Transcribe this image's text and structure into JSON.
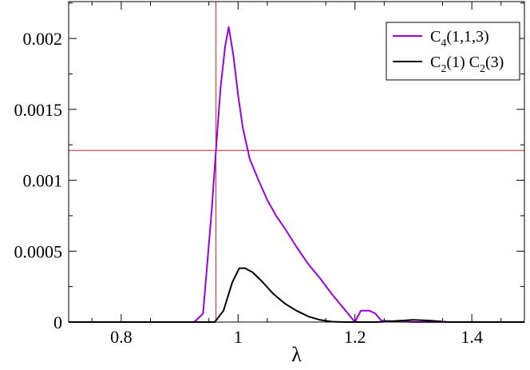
{
  "chart_data": {
    "type": "line",
    "xlabel": "λ",
    "ylabel": "",
    "xlim": [
      0.71,
      1.49
    ],
    "ylim": [
      0,
      0.00226
    ],
    "x_ticks": [
      {
        "value": 0.8,
        "label": "0.8"
      },
      {
        "value": 1.0,
        "label": "1"
      },
      {
        "value": 1.2,
        "label": "1.2"
      },
      {
        "value": 1.4,
        "label": "1.4"
      }
    ],
    "y_ticks": [
      {
        "value": 0,
        "label": "0"
      },
      {
        "value": 0.0005,
        "label": "0.0005"
      },
      {
        "value": 0.001,
        "label": "0.001"
      },
      {
        "value": 0.0015,
        "label": "0.0015"
      },
      {
        "value": 0.002,
        "label": "0.002"
      }
    ],
    "x_minor_step": 0.1,
    "y_minor_step": 0.00025,
    "legend_position": "top-right",
    "reference_lines": {
      "color": "#e02020",
      "vertical_x": 0.962,
      "horizontal_y": 0.00121
    },
    "series": [
      {
        "name": "C4(1,1,3)",
        "legend": {
          "main": "C",
          "sub": "4",
          "rest": "(1,1,3)"
        },
        "color": "#9b00e0",
        "points": [
          [
            0.71,
            0
          ],
          [
            0.925,
            0
          ],
          [
            0.94,
            6e-05
          ],
          [
            0.947,
            0.0004
          ],
          [
            0.955,
            0.0008
          ],
          [
            0.962,
            0.00121
          ],
          [
            0.97,
            0.00165
          ],
          [
            0.978,
            0.00195
          ],
          [
            0.984,
            0.00208
          ],
          [
            0.992,
            0.00188
          ],
          [
            1.0,
            0.0016
          ],
          [
            1.008,
            0.00137
          ],
          [
            1.02,
            0.00115
          ],
          [
            1.035,
            0.001
          ],
          [
            1.05,
            0.00086
          ],
          [
            1.065,
            0.00075
          ],
          [
            1.08,
            0.00066
          ],
          [
            1.1,
            0.00053
          ],
          [
            1.12,
            0.00041
          ],
          [
            1.14,
            0.00031
          ],
          [
            1.16,
            0.0002
          ],
          [
            1.18,
            0.0001
          ],
          [
            1.2,
            0
          ],
          [
            1.21,
            8e-05
          ],
          [
            1.225,
            8e-05
          ],
          [
            1.235,
            6e-05
          ],
          [
            1.245,
            1e-05
          ],
          [
            1.3,
            0
          ],
          [
            1.36,
            0
          ],
          [
            1.49,
            0
          ]
        ]
      },
      {
        "name": "C2(1) C2(3)",
        "legend": {
          "main": "C",
          "sub": "2",
          "rest": "(1) C",
          "sub2": "2",
          "rest2": "(3)"
        },
        "color": "#000000",
        "points": [
          [
            0.71,
            0
          ],
          [
            0.96,
            0
          ],
          [
            0.975,
            8e-05
          ],
          [
            0.99,
            0.00028
          ],
          [
            1.002,
            0.00038
          ],
          [
            1.012,
            0.00038
          ],
          [
            1.025,
            0.00035
          ],
          [
            1.04,
            0.00029
          ],
          [
            1.06,
            0.0002
          ],
          [
            1.08,
            0.00013
          ],
          [
            1.1,
            8e-05
          ],
          [
            1.12,
            4e-05
          ],
          [
            1.14,
            1.5e-05
          ],
          [
            1.16,
            3e-06
          ],
          [
            1.18,
            0
          ],
          [
            1.2,
            0
          ],
          [
            1.24,
            0
          ],
          [
            1.27,
            8e-06
          ],
          [
            1.3,
            1.5e-05
          ],
          [
            1.33,
            1e-05
          ],
          [
            1.36,
            0
          ],
          [
            1.49,
            0
          ]
        ]
      }
    ]
  }
}
